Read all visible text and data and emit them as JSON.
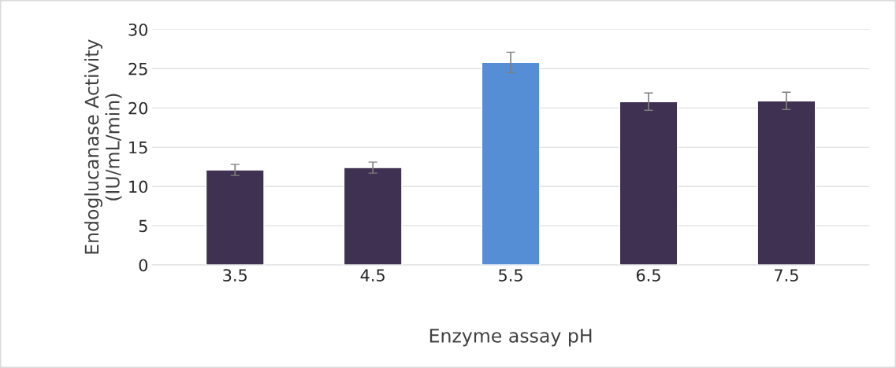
{
  "chart_data": {
    "type": "bar",
    "xlabel": "Enzyme assay pH",
    "ylabel": "Endoglucanase Activity\n(IU/mL/min)",
    "categories": [
      "3.5",
      "4.5",
      "5.5",
      "6.5",
      "7.5"
    ],
    "values": [
      12.1,
      12.4,
      25.8,
      20.8,
      20.9
    ],
    "errors": [
      0.7,
      0.7,
      1.3,
      1.1,
      1.1
    ],
    "colors": [
      "#3f3151",
      "#3f3151",
      "#558ed5",
      "#3f3151",
      "#3f3151"
    ],
    "ylim": [
      0,
      30
    ],
    "yticks": [
      0,
      5,
      10,
      15,
      20,
      25,
      30
    ],
    "grid": "y",
    "legend": false
  }
}
